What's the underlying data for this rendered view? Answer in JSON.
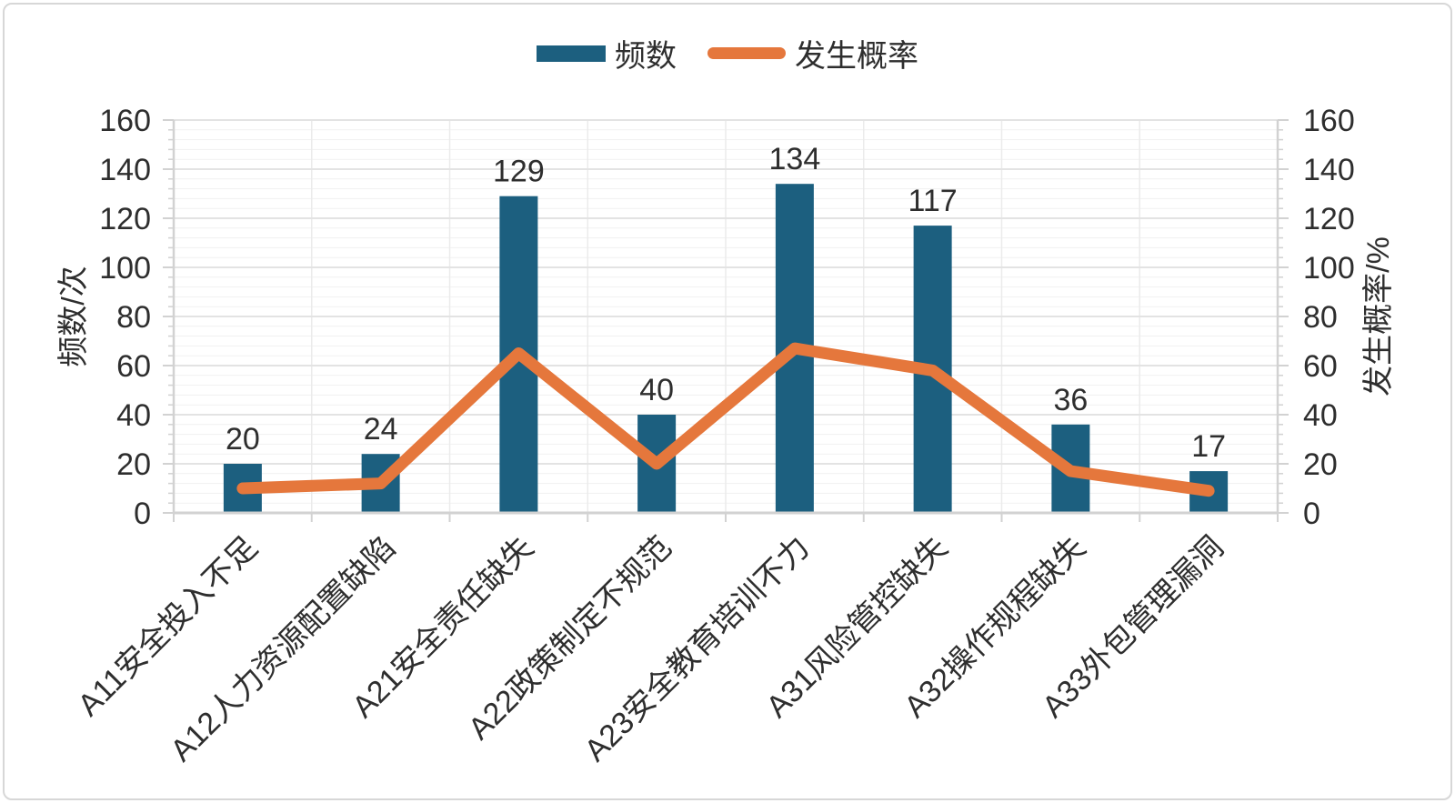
{
  "chart_data": {
    "type": "bar",
    "combo": "bar+line",
    "title": "",
    "categories": [
      "A11安全投入不足",
      "A12人力资源配置缺陷",
      "A21安全责任缺失",
      "A22政策制定不规范",
      "A23安全教育培训不力",
      "A31风险管控缺失",
      "A32操作规程缺失",
      "A33外包管理漏洞"
    ],
    "series": [
      {
        "name": "频数",
        "type": "bar",
        "axis": "left",
        "color": "#1C5F7F",
        "values": [
          20,
          24,
          129,
          40,
          134,
          117,
          36,
          17
        ],
        "data_labels": [
          "20",
          "24",
          "129",
          "40",
          "134",
          "117",
          "36",
          "17"
        ]
      },
      {
        "name": "发生概率",
        "type": "line",
        "axis": "right",
        "color": "#E5773C",
        "values": [
          10,
          12,
          65,
          20,
          67,
          58,
          17,
          9
        ]
      }
    ],
    "left_axis": {
      "title": "频数/次",
      "min": 0,
      "max": 160,
      "major_step": 20,
      "minor_step": 4,
      "tick_labels": [
        "0",
        "20",
        "40",
        "60",
        "80",
        "100",
        "120",
        "140",
        "160"
      ]
    },
    "right_axis": {
      "title": "发生概率/%",
      "min": 0,
      "max": 160,
      "major_step": 20,
      "tick_labels": [
        "0",
        "20",
        "40",
        "60",
        "80",
        "100",
        "120",
        "140",
        "160"
      ]
    },
    "legend": {
      "position": "top",
      "items": [
        {
          "label": "频数",
          "marker": "bar",
          "color": "#1C5F7F"
        },
        {
          "label": "发生概率",
          "marker": "line",
          "color": "#E5773C"
        }
      ]
    },
    "grid": {
      "horizontal_minor": true,
      "horizontal_major": true,
      "vertical_category": true
    },
    "colors": {
      "axis_line": "#d2d2d2",
      "grid_major": "#e3e3e3",
      "grid_minor": "#f1f1f1",
      "grid_vertical": "#ebebeb",
      "text": "#2e2e2e"
    }
  }
}
